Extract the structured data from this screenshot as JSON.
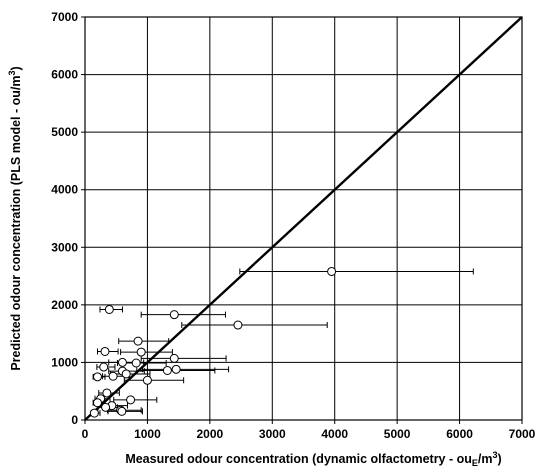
{
  "chart_data": {
    "type": "scatter",
    "title": "",
    "xlabel": "Measured odour concentration (dynamic olfactometry - ouE/m3)",
    "ylabel": "Predicted odour concentration (PLS model - ou/m3)",
    "xlabel_parts": {
      "main": "Measured odour concentration (dynamic olfactometry - ou",
      "sub": "E",
      "mid": "/m",
      "sup": "3",
      "end": ")"
    },
    "ylabel_parts": {
      "main": "Predicted odour concentration (PLS model - ou/m",
      "sup": "3",
      "end": ")"
    },
    "xlim": [
      0,
      7000
    ],
    "ylim": [
      0,
      7000
    ],
    "xticks": [
      "0",
      "1000",
      "2000",
      "3000",
      "4000",
      "5000",
      "6000",
      "7000"
    ],
    "yticks": [
      "0",
      "1000",
      "2000",
      "3000",
      "4000",
      "5000",
      "6000",
      "7000"
    ],
    "grid": true,
    "reference_line": {
      "from": [
        0,
        0
      ],
      "to": [
        7000,
        7000
      ]
    },
    "points": [
      {
        "x": 3950,
        "y": 2580,
        "xerr_low": 2480,
        "xerr_high": 6220
      },
      {
        "x": 2450,
        "y": 1650,
        "xerr_low": 1550,
        "xerr_high": 3880
      },
      {
        "x": 1430,
        "y": 1830,
        "xerr_low": 900,
        "xerr_high": 2250
      },
      {
        "x": 390,
        "y": 1920,
        "xerr_low": 240,
        "xerr_high": 600
      },
      {
        "x": 850,
        "y": 1370,
        "xerr_low": 540,
        "xerr_high": 1340
      },
      {
        "x": 320,
        "y": 1190,
        "xerr_low": 200,
        "xerr_high": 530
      },
      {
        "x": 900,
        "y": 1180,
        "xerr_low": 570,
        "xerr_high": 1400
      },
      {
        "x": 1430,
        "y": 1070,
        "xerr_low": 900,
        "xerr_high": 2260
      },
      {
        "x": 600,
        "y": 1000,
        "xerr_low": 380,
        "xerr_high": 940
      },
      {
        "x": 820,
        "y": 990,
        "xerr_low": 520,
        "xerr_high": 1300
      },
      {
        "x": 300,
        "y": 920,
        "xerr_low": 190,
        "xerr_high": 480
      },
      {
        "x": 1460,
        "y": 880,
        "xerr_low": 920,
        "xerr_high": 2300
      },
      {
        "x": 1320,
        "y": 860,
        "xerr_low": 830,
        "xerr_high": 2080
      },
      {
        "x": 600,
        "y": 850,
        "xerr_low": 380,
        "xerr_high": 950
      },
      {
        "x": 660,
        "y": 800,
        "xerr_low": 410,
        "xerr_high": 1040
      },
      {
        "x": 450,
        "y": 760,
        "xerr_low": 280,
        "xerr_high": 710
      },
      {
        "x": 200,
        "y": 750,
        "xerr_low": 130,
        "xerr_high": 320
      },
      {
        "x": 1000,
        "y": 690,
        "xerr_low": 630,
        "xerr_high": 1580
      },
      {
        "x": 350,
        "y": 470,
        "xerr_low": 220,
        "xerr_high": 550
      },
      {
        "x": 250,
        "y": 370,
        "xerr_low": 160,
        "xerr_high": 400
      },
      {
        "x": 730,
        "y": 350,
        "xerr_low": 460,
        "xerr_high": 1150
      },
      {
        "x": 200,
        "y": 300,
        "xerr_low": 130,
        "xerr_high": 320
      },
      {
        "x": 430,
        "y": 250,
        "xerr_low": 270,
        "xerr_high": 680
      },
      {
        "x": 330,
        "y": 220,
        "xerr_low": 210,
        "xerr_high": 520
      },
      {
        "x": 570,
        "y": 170,
        "xerr_low": 360,
        "xerr_high": 900
      },
      {
        "x": 590,
        "y": 150,
        "xerr_low": 370,
        "xerr_high": 920
      },
      {
        "x": 150,
        "y": 120,
        "xerr_low": 100,
        "xerr_high": 240
      }
    ]
  }
}
